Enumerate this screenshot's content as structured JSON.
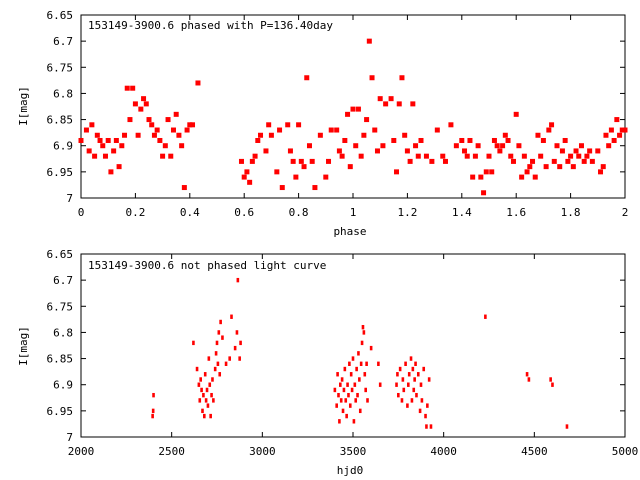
{
  "chart_data": [
    {
      "type": "scatter",
      "title": "153149-3900.6 phased with P=136.40day",
      "xlabel": "phase",
      "ylabel": "I[mag]",
      "xlim": [
        0,
        2
      ],
      "ylim": [
        7,
        6.65
      ],
      "y_inverted": true,
      "grid": false,
      "marker_color": "#ff0000",
      "x_ticks": [
        "0",
        "0.2",
        "0.4",
        "0.6",
        "0.8",
        "1",
        "1.2",
        "1.4",
        "1.6",
        "1.8",
        "2"
      ],
      "y_ticks": [
        "6.65",
        "6.7",
        "6.75",
        "6.8",
        "6.85",
        "6.9",
        "6.95",
        "7"
      ],
      "points": [
        [
          0.0,
          6.89
        ],
        [
          0.02,
          6.87
        ],
        [
          0.03,
          6.91
        ],
        [
          0.04,
          6.86
        ],
        [
          0.05,
          6.92
        ],
        [
          0.06,
          6.88
        ],
        [
          0.07,
          6.89
        ],
        [
          0.08,
          6.9
        ],
        [
          0.09,
          6.92
        ],
        [
          0.1,
          6.89
        ],
        [
          0.11,
          6.95
        ],
        [
          0.12,
          6.91
        ],
        [
          0.13,
          6.89
        ],
        [
          0.14,
          6.94
        ],
        [
          0.15,
          6.9
        ],
        [
          0.16,
          6.88
        ],
        [
          0.17,
          6.79
        ],
        [
          0.18,
          6.85
        ],
        [
          0.19,
          6.79
        ],
        [
          0.2,
          6.82
        ],
        [
          0.21,
          6.88
        ],
        [
          0.22,
          6.83
        ],
        [
          0.23,
          6.81
        ],
        [
          0.24,
          6.82
        ],
        [
          0.25,
          6.85
        ],
        [
          0.26,
          6.86
        ],
        [
          0.27,
          6.88
        ],
        [
          0.28,
          6.87
        ],
        [
          0.29,
          6.89
        ],
        [
          0.3,
          6.92
        ],
        [
          0.31,
          6.9
        ],
        [
          0.32,
          6.85
        ],
        [
          0.33,
          6.92
        ],
        [
          0.34,
          6.87
        ],
        [
          0.35,
          6.84
        ],
        [
          0.36,
          6.88
        ],
        [
          0.37,
          6.9
        ],
        [
          0.38,
          6.98
        ],
        [
          0.39,
          6.87
        ],
        [
          0.4,
          6.86
        ],
        [
          0.41,
          6.86
        ],
        [
          0.43,
          6.78
        ],
        [
          0.59,
          6.93
        ],
        [
          0.6,
          6.96
        ],
        [
          0.61,
          6.95
        ],
        [
          0.62,
          6.97
        ],
        [
          0.63,
          6.93
        ],
        [
          0.64,
          6.92
        ],
        [
          0.65,
          6.89
        ],
        [
          0.66,
          6.88
        ],
        [
          0.68,
          6.91
        ],
        [
          0.69,
          6.86
        ],
        [
          0.7,
          6.88
        ],
        [
          0.72,
          6.95
        ],
        [
          0.73,
          6.87
        ],
        [
          0.74,
          6.98
        ],
        [
          0.76,
          6.86
        ],
        [
          0.77,
          6.91
        ],
        [
          0.78,
          6.93
        ],
        [
          0.79,
          6.96
        ],
        [
          0.8,
          6.86
        ],
        [
          0.81,
          6.93
        ],
        [
          0.82,
          6.94
        ],
        [
          0.83,
          6.77
        ],
        [
          0.84,
          6.9
        ],
        [
          0.85,
          6.93
        ],
        [
          0.86,
          6.98
        ],
        [
          0.88,
          6.88
        ],
        [
          0.9,
          6.96
        ],
        [
          0.91,
          6.93
        ],
        [
          0.92,
          6.87
        ],
        [
          0.94,
          6.87
        ],
        [
          0.95,
          6.91
        ],
        [
          0.96,
          6.92
        ],
        [
          0.97,
          6.89
        ],
        [
          0.98,
          6.84
        ],
        [
          0.99,
          6.94
        ],
        [
          1.0,
          6.83
        ],
        [
          1.01,
          6.9
        ],
        [
          1.02,
          6.83
        ],
        [
          1.03,
          6.92
        ],
        [
          1.04,
          6.88
        ],
        [
          1.05,
          6.85
        ],
        [
          1.06,
          6.7
        ],
        [
          1.07,
          6.77
        ],
        [
          1.08,
          6.87
        ],
        [
          1.09,
          6.91
        ],
        [
          1.1,
          6.81
        ],
        [
          1.11,
          6.9
        ],
        [
          1.12,
          6.82
        ],
        [
          1.14,
          6.81
        ],
        [
          1.15,
          6.89
        ],
        [
          1.16,
          6.95
        ],
        [
          1.17,
          6.82
        ],
        [
          1.18,
          6.77
        ],
        [
          1.19,
          6.88
        ],
        [
          1.2,
          6.91
        ],
        [
          1.21,
          6.93
        ],
        [
          1.22,
          6.82
        ],
        [
          1.23,
          6.9
        ],
        [
          1.24,
          6.92
        ],
        [
          1.25,
          6.89
        ],
        [
          1.27,
          6.92
        ],
        [
          1.29,
          6.93
        ],
        [
          1.31,
          6.87
        ],
        [
          1.33,
          6.92
        ],
        [
          1.34,
          6.93
        ],
        [
          1.36,
          6.86
        ],
        [
          1.38,
          6.9
        ],
        [
          1.4,
          6.89
        ],
        [
          1.41,
          6.91
        ],
        [
          1.42,
          6.92
        ],
        [
          1.43,
          6.89
        ],
        [
          1.44,
          6.96
        ],
        [
          1.45,
          6.92
        ],
        [
          1.46,
          6.9
        ],
        [
          1.47,
          6.96
        ],
        [
          1.48,
          6.99
        ],
        [
          1.49,
          6.95
        ],
        [
          1.5,
          6.92
        ],
        [
          1.51,
          6.95
        ],
        [
          1.52,
          6.89
        ],
        [
          1.53,
          6.9
        ],
        [
          1.54,
          6.91
        ],
        [
          1.55,
          6.9
        ],
        [
          1.56,
          6.88
        ],
        [
          1.57,
          6.89
        ],
        [
          1.58,
          6.92
        ],
        [
          1.59,
          6.93
        ],
        [
          1.6,
          6.84
        ],
        [
          1.61,
          6.9
        ],
        [
          1.62,
          6.96
        ],
        [
          1.63,
          6.92
        ],
        [
          1.64,
          6.95
        ],
        [
          1.65,
          6.94
        ],
        [
          1.66,
          6.93
        ],
        [
          1.67,
          6.96
        ],
        [
          1.68,
          6.88
        ],
        [
          1.69,
          6.92
        ],
        [
          1.7,
          6.89
        ],
        [
          1.71,
          6.94
        ],
        [
          1.72,
          6.87
        ],
        [
          1.73,
          6.86
        ],
        [
          1.74,
          6.93
        ],
        [
          1.75,
          6.9
        ],
        [
          1.76,
          6.94
        ],
        [
          1.77,
          6.91
        ],
        [
          1.78,
          6.89
        ],
        [
          1.79,
          6.93
        ],
        [
          1.8,
          6.92
        ],
        [
          1.81,
          6.94
        ],
        [
          1.82,
          6.91
        ],
        [
          1.83,
          6.92
        ],
        [
          1.84,
          6.9
        ],
        [
          1.85,
          6.93
        ],
        [
          1.86,
          6.92
        ],
        [
          1.87,
          6.91
        ],
        [
          1.88,
          6.93
        ],
        [
          1.9,
          6.91
        ],
        [
          1.91,
          6.95
        ],
        [
          1.92,
          6.94
        ],
        [
          1.93,
          6.88
        ],
        [
          1.94,
          6.9
        ],
        [
          1.95,
          6.87
        ],
        [
          1.96,
          6.89
        ],
        [
          1.97,
          6.85
        ],
        [
          1.98,
          6.88
        ],
        [
          1.99,
          6.87
        ],
        [
          2.0,
          6.87
        ]
      ]
    },
    {
      "type": "scatter",
      "title": "153149-3900.6 not phased light curve",
      "xlabel": "hjd0",
      "ylabel": "I[mag]",
      "xlim": [
        2000,
        5000
      ],
      "ylim": [
        7,
        6.65
      ],
      "y_inverted": true,
      "grid": false,
      "marker_color": "#ff0000",
      "x_ticks": [
        "2000",
        "2500",
        "3000",
        "3500",
        "4000",
        "4500",
        "5000"
      ],
      "y_ticks": [
        "6.65",
        "6.7",
        "6.75",
        "6.8",
        "6.85",
        "6.9",
        "6.95",
        "7"
      ],
      "points": [
        [
          2395,
          6.96
        ],
        [
          2398,
          6.95
        ],
        [
          2400,
          6.92
        ],
        [
          2620,
          6.82
        ],
        [
          2640,
          6.87
        ],
        [
          2650,
          6.9
        ],
        [
          2655,
          6.93
        ],
        [
          2660,
          6.89
        ],
        [
          2665,
          6.91
        ],
        [
          2670,
          6.95
        ],
        [
          2675,
          6.92
        ],
        [
          2680,
          6.96
        ],
        [
          2685,
          6.88
        ],
        [
          2690,
          6.93
        ],
        [
          2695,
          6.91
        ],
        [
          2700,
          6.94
        ],
        [
          2705,
          6.85
        ],
        [
          2710,
          6.9
        ],
        [
          2715,
          6.96
        ],
        [
          2720,
          6.92
        ],
        [
          2725,
          6.89
        ],
        [
          2730,
          6.93
        ],
        [
          2740,
          6.87
        ],
        [
          2745,
          6.84
        ],
        [
          2750,
          6.82
        ],
        [
          2755,
          6.86
        ],
        [
          2760,
          6.8
        ],
        [
          2765,
          6.88
        ],
        [
          2770,
          6.78
        ],
        [
          2780,
          6.81
        ],
        [
          2800,
          6.86
        ],
        [
          2820,
          6.85
        ],
        [
          2830,
          6.77
        ],
        [
          2850,
          6.83
        ],
        [
          2860,
          6.8
        ],
        [
          2865,
          6.7
        ],
        [
          2875,
          6.85
        ],
        [
          2880,
          6.82
        ],
        [
          3400,
          6.91
        ],
        [
          3410,
          6.94
        ],
        [
          3415,
          6.88
        ],
        [
          3420,
          6.92
        ],
        [
          3425,
          6.97
        ],
        [
          3430,
          6.9
        ],
        [
          3435,
          6.93
        ],
        [
          3440,
          6.89
        ],
        [
          3445,
          6.95
        ],
        [
          3450,
          6.91
        ],
        [
          3455,
          6.87
        ],
        [
          3460,
          6.93
        ],
        [
          3465,
          6.96
        ],
        [
          3470,
          6.9
        ],
        [
          3475,
          6.92
        ],
        [
          3480,
          6.86
        ],
        [
          3485,
          6.94
        ],
        [
          3490,
          6.88
        ],
        [
          3495,
          6.91
        ],
        [
          3500,
          6.85
        ],
        [
          3505,
          6.97
        ],
        [
          3510,
          6.9
        ],
        [
          3515,
          6.93
        ],
        [
          3520,
          6.87
        ],
        [
          3525,
          6.92
        ],
        [
          3530,
          6.84
        ],
        [
          3535,
          6.89
        ],
        [
          3540,
          6.95
        ],
        [
          3545,
          6.86
        ],
        [
          3550,
          6.82
        ],
        [
          3555,
          6.79
        ],
        [
          3560,
          6.8
        ],
        [
          3565,
          6.88
        ],
        [
          3570,
          6.91
        ],
        [
          3575,
          6.86
        ],
        [
          3580,
          6.93
        ],
        [
          3600,
          6.83
        ],
        [
          3640,
          6.86
        ],
        [
          3650,
          6.9
        ],
        [
          3740,
          6.9
        ],
        [
          3745,
          6.88
        ],
        [
          3750,
          6.92
        ],
        [
          3760,
          6.87
        ],
        [
          3770,
          6.93
        ],
        [
          3775,
          6.89
        ],
        [
          3780,
          6.91
        ],
        [
          3790,
          6.86
        ],
        [
          3800,
          6.94
        ],
        [
          3805,
          6.9
        ],
        [
          3810,
          6.88
        ],
        [
          3820,
          6.85
        ],
        [
          3825,
          6.93
        ],
        [
          3830,
          6.87
        ],
        [
          3835,
          6.91
        ],
        [
          3840,
          6.89
        ],
        [
          3845,
          6.86
        ],
        [
          3850,
          6.92
        ],
        [
          3860,
          6.88
        ],
        [
          3870,
          6.95
        ],
        [
          3875,
          6.9
        ],
        [
          3880,
          6.93
        ],
        [
          3890,
          6.87
        ],
        [
          3900,
          6.96
        ],
        [
          3905,
          6.98
        ],
        [
          3910,
          6.94
        ],
        [
          3920,
          6.89
        ],
        [
          3930,
          6.98
        ],
        [
          4230,
          6.77
        ],
        [
          4460,
          6.88
        ],
        [
          4470,
          6.89
        ],
        [
          4590,
          6.89
        ],
        [
          4600,
          6.9
        ],
        [
          4680,
          6.98
        ]
      ]
    }
  ]
}
